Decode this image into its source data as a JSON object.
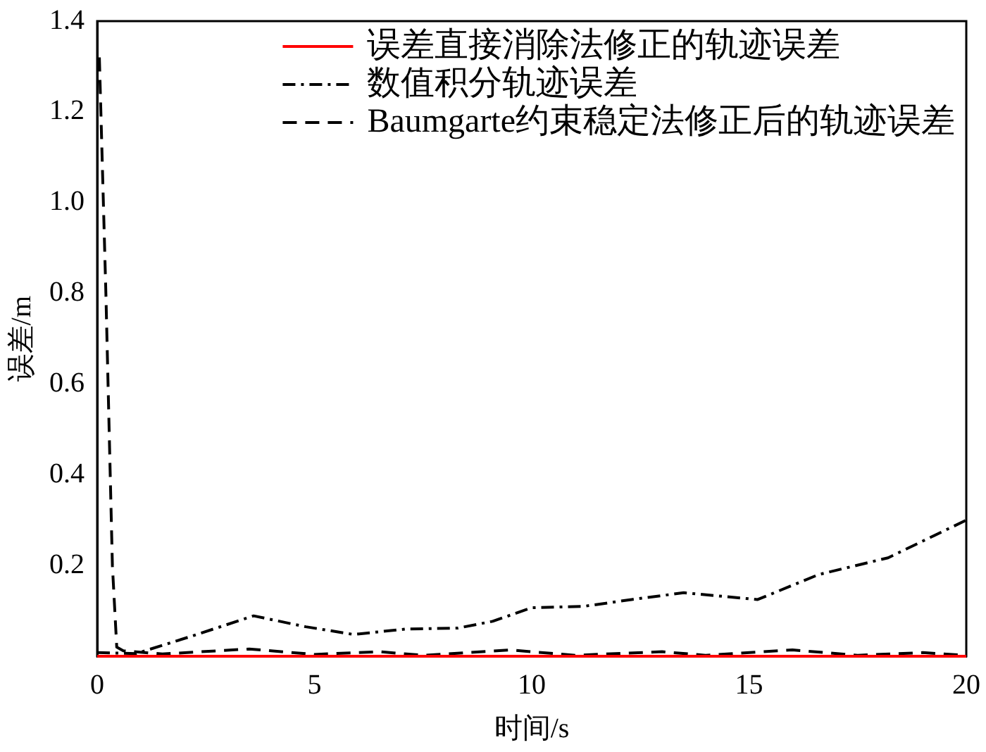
{
  "chart_data": {
    "type": "line",
    "xlabel": "时间/s",
    "ylabel": "误差/m",
    "xlim": [
      0,
      20
    ],
    "xticks": [
      0,
      5,
      10,
      15,
      20
    ],
    "ylim": [
      0,
      1.4
    ],
    "yticks": [
      0.2,
      0.4,
      0.6,
      0.8,
      {
        "value": 1,
        "label": "1.0"
      },
      1.2,
      1.4
    ],
    "grid": false,
    "legend": "top right",
    "marker": "none",
    "series": [
      {
        "name": "误差直接消除法修正的轨迹误差",
        "color": "#ff0000",
        "line_style": "solid",
        "x": [
          0,
          20
        ],
        "values": [
          0,
          0
        ]
      },
      {
        "name": "数值积分轨迹误差",
        "color": "#000000",
        "line_style": "dashdot",
        "x": [
          0,
          0.9,
          2.1,
          3.6,
          4.8,
          5.9,
          7.1,
          8.3,
          9.1,
          10.0,
          11.2,
          12.3,
          13.5,
          15.2,
          16.6,
          18.2,
          20
        ],
        "values": [
          0.008,
          0.006,
          0.042,
          0.089,
          0.065,
          0.048,
          0.06,
          0.062,
          0.077,
          0.107,
          0.11,
          0.125,
          0.14,
          0.125,
          0.18,
          0.217,
          0.3
        ]
      },
      {
        "name": "Baumgarte约束稳定法修正后的轨迹误差",
        "color": "#000000",
        "line_style": "dashed",
        "x": [
          0.05,
          0.2,
          0.35,
          0.45,
          0.6,
          1.5,
          3.5,
          5,
          6.5,
          7.5,
          9.5,
          11,
          13,
          14,
          16,
          17.5,
          19,
          20
        ],
        "values": [
          1.32,
          0.8,
          0.2,
          0.02,
          0.012,
          0.005,
          0.016,
          0.004,
          0.01,
          0.002,
          0.014,
          0.002,
          0.01,
          0.002,
          0.014,
          0.002,
          0.008,
          0.002
        ]
      }
    ]
  }
}
